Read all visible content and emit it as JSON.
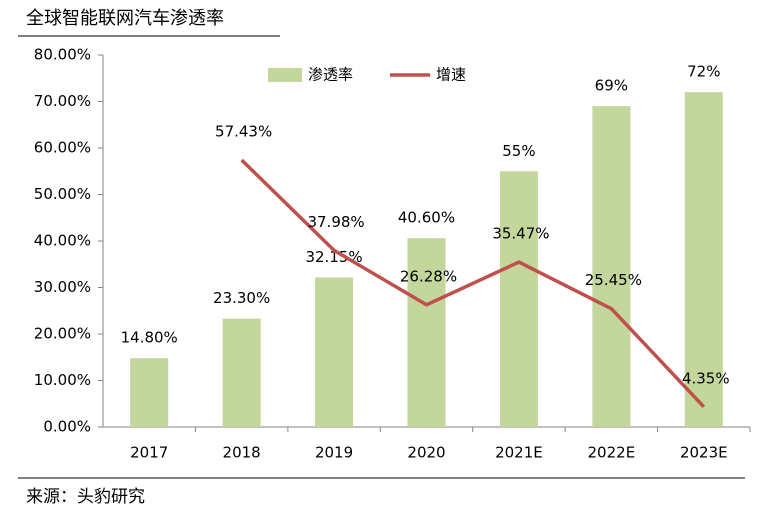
{
  "chart_data": {
    "type": "bar",
    "title": "全球智能联网汽车渗透率",
    "source": "来源：头豹研究",
    "categories": [
      "2017",
      "2018",
      "2019",
      "2020",
      "2021E",
      "2022E",
      "2023E"
    ],
    "series": [
      {
        "name": "渗透率",
        "type": "bar",
        "color": "#c3d69b",
        "values": [
          14.8,
          23.3,
          32.15,
          40.6,
          55,
          69,
          72
        ],
        "value_labels": [
          "14.80%",
          "23.30%",
          "32.15%",
          "40.60%",
          "55%",
          "69%",
          "72%"
        ]
      },
      {
        "name": "增速",
        "type": "line",
        "color": "#c0504d",
        "values": [
          null,
          57.43,
          37.98,
          26.28,
          35.47,
          25.45,
          4.35
        ],
        "value_labels": [
          null,
          "57.43%",
          "37.98%",
          "26.28%",
          "35.47%",
          "25.45%",
          "4.35%"
        ]
      }
    ],
    "ylim": [
      0,
      80
    ],
    "yticks": [
      {
        "value": 0,
        "label": "0.00%"
      },
      {
        "value": 10,
        "label": "10.00%"
      },
      {
        "value": 20,
        "label": "20.00%"
      },
      {
        "value": 30,
        "label": "30.00%"
      },
      {
        "value": 40,
        "label": "40.00%"
      },
      {
        "value": 50,
        "label": "50.00%"
      },
      {
        "value": 60,
        "label": "60.00%"
      },
      {
        "value": 70,
        "label": "70.00%"
      },
      {
        "value": 80,
        "label": "80.00%"
      }
    ],
    "grid": false,
    "legend": "top"
  }
}
